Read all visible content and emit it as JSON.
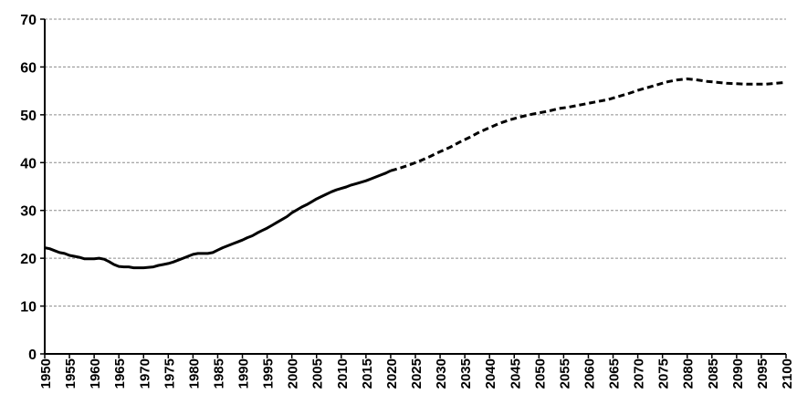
{
  "chart_data": {
    "type": "line",
    "title": "",
    "xlabel": "",
    "ylabel": "",
    "xlim": [
      1950,
      2100
    ],
    "ylim": [
      0,
      70
    ],
    "x_ticks": [
      "1950",
      "1955",
      "1960",
      "1965",
      "1970",
      "1975",
      "1980",
      "1985",
      "1990",
      "1995",
      "2000",
      "2005",
      "2010",
      "2015",
      "2020",
      "2025",
      "2030",
      "2035",
      "2040",
      "2045",
      "2050",
      "2055",
      "2060",
      "2065",
      "2070",
      "2075",
      "2080",
      "2085",
      "2090",
      "2095",
      "2100"
    ],
    "y_ticks": [
      "0",
      "10",
      "20",
      "30",
      "40",
      "50",
      "60",
      "70"
    ],
    "grid": "horizontal dashed",
    "legend": "none",
    "series": [
      {
        "style": "solid",
        "color": "#000000",
        "x": [
          1950,
          1951,
          1952,
          1953,
          1954,
          1955,
          1956,
          1957,
          1958,
          1959,
          1960,
          1961,
          1962,
          1963,
          1964,
          1965,
          1966,
          1967,
          1968,
          1969,
          1970,
          1971,
          1972,
          1973,
          1974,
          1975,
          1976,
          1977,
          1978,
          1979,
          1980,
          1981,
          1982,
          1983,
          1984,
          1985,
          1986,
          1987,
          1988,
          1989,
          1990,
          1991,
          1992,
          1993,
          1994,
          1995,
          1996,
          1997,
          1998,
          1999,
          2000,
          2001,
          2002,
          2003,
          2004,
          2005,
          2006,
          2007,
          2008,
          2009,
          2010,
          2011,
          2012,
          2013,
          2014,
          2015,
          2016,
          2017,
          2018,
          2019,
          2020
        ],
        "y": [
          22.2,
          22.0,
          21.6,
          21.2,
          21.0,
          20.6,
          20.4,
          20.2,
          19.9,
          19.9,
          19.9,
          20.0,
          19.8,
          19.3,
          18.7,
          18.3,
          18.2,
          18.2,
          18.0,
          18.0,
          18.0,
          18.1,
          18.2,
          18.5,
          18.7,
          18.9,
          19.2,
          19.6,
          20.0,
          20.4,
          20.8,
          21.0,
          21.0,
          21.0,
          21.2,
          21.7,
          22.2,
          22.6,
          23.0,
          23.4,
          23.8,
          24.3,
          24.7,
          25.3,
          25.8,
          26.3,
          26.9,
          27.5,
          28.1,
          28.7,
          29.5,
          30.1,
          30.7,
          31.2,
          31.8,
          32.4,
          32.9,
          33.4,
          33.9,
          34.3,
          34.6,
          34.9,
          35.3,
          35.6,
          35.9,
          36.2,
          36.6,
          37.0,
          37.4,
          37.8,
          38.3
        ]
      },
      {
        "style": "dashed",
        "color": "#000000",
        "x": [
          2020,
          2022,
          2024,
          2026,
          2028,
          2030,
          2032,
          2034,
          2036,
          2038,
          2040,
          2042,
          2044,
          2046,
          2048,
          2050,
          2052,
          2054,
          2056,
          2058,
          2060,
          2062,
          2064,
          2066,
          2068,
          2070,
          2072,
          2074,
          2076,
          2078,
          2080,
          2082,
          2084,
          2086,
          2088,
          2090,
          2092,
          2094,
          2096,
          2098,
          2100
        ],
        "y": [
          38.3,
          38.9,
          39.6,
          40.4,
          41.3,
          42.3,
          43.2,
          44.3,
          45.3,
          46.4,
          47.3,
          48.2,
          48.9,
          49.5,
          50.0,
          50.4,
          50.8,
          51.3,
          51.6,
          52.0,
          52.4,
          52.8,
          53.2,
          53.8,
          54.4,
          55.1,
          55.7,
          56.3,
          56.9,
          57.3,
          57.5,
          57.3,
          57.0,
          56.8,
          56.6,
          56.5,
          56.4,
          56.4,
          56.4,
          56.6,
          56.8
        ]
      }
    ]
  }
}
